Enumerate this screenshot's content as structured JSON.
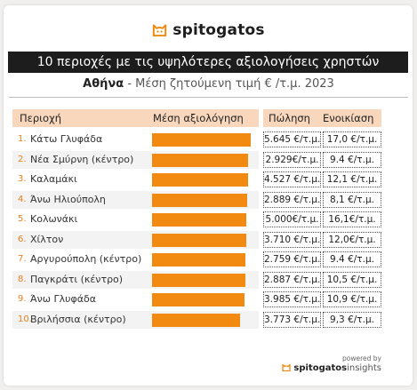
{
  "brand": {
    "name": "spitogatos",
    "accent": "#f28a12"
  },
  "title": "10 περιοχές με τις υψηλότερες αξιολογήσεις χρηστών",
  "subtitle": {
    "city": "Αθήνα",
    "rest": " - Μέση ζητούμενη τιμή € /τ.μ. 2023"
  },
  "headers": {
    "area": "Περιοχή",
    "rating": "Μέση αξιολόγηση",
    "sale": "Πώληση",
    "rent": "Ενοικίαση"
  },
  "chart_data": {
    "type": "bar",
    "categories": [
      "Κάτω Γλυφάδα",
      "Νέα Σμύρνη (κέντρο)",
      "Καλαμάκι",
      "Άνω Ηλιούπολη",
      "Κολωνάκι",
      "Χίλτον",
      "Αργυρούπολη (κέντρο)",
      "Παγκράτι (κέντρο)",
      "Άνω Γλυφάδα",
      "Βριλήσσια (κέντρο)"
    ],
    "values": [
      0.98,
      0.96,
      0.96,
      0.95,
      0.94,
      0.94,
      0.93,
      0.93,
      0.92,
      0.88
    ],
    "ranks": [
      "1.",
      "2.",
      "3.",
      "4.",
      "5.",
      "6.",
      "7.",
      "8.",
      "9.",
      "10."
    ],
    "sale": [
      "5.645 €/τ.μ.",
      "2.929€/τ.μ.",
      "4.527 €/τ.μ.",
      "2.889 €/τ.μ.",
      "5.000€/τ.μ.",
      "3.710 €/τ.μ.",
      "2.759 €/τ.μ.",
      "2.887 €/τ.μ.",
      "3.985 €/τ.μ.",
      "3.773 €/τ.μ."
    ],
    "rent": [
      "17,0 €/τ.μ.",
      "9.4 €/τ.μ.",
      "12,1 €/τ.μ.",
      "8,1 €/τ.μ.",
      "16,1€/τ.μ.",
      "12,0€/τ.μ.",
      "9.4 €/τ.μ.",
      "10,5 €/τ.μ.",
      "10,9 €/τ.μ.",
      "9,3 €/τ.μ."
    ],
    "xlim": [
      0,
      1
    ]
  },
  "footer": {
    "powered": "powered by",
    "logo_bold": "spitogatos",
    "logo_light": "insights"
  }
}
